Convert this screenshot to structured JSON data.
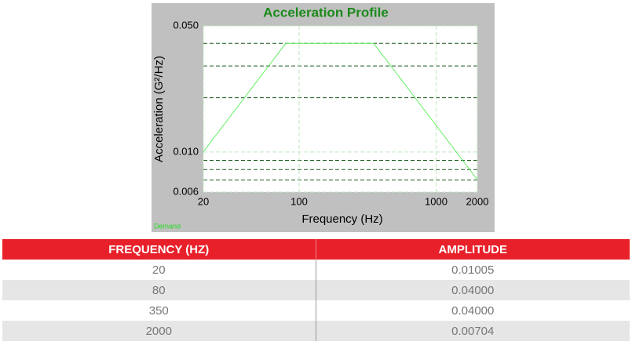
{
  "chart_data": {
    "type": "line",
    "title": "Acceleration Profile",
    "xlabel": "Frequency (Hz)",
    "ylabel": "Acceleration (G²/Hz)",
    "legend_text": "Demand",
    "xscale": "log",
    "yscale": "log",
    "x": [
      20,
      80,
      350,
      2000
    ],
    "series": [
      {
        "name": "Demand",
        "color": "#66ee66",
        "values": [
          0.01005,
          0.04,
          0.04,
          0.00704
        ]
      }
    ],
    "xlim": [
      20,
      2000
    ],
    "xticks": [
      20,
      100,
      1000,
      2000
    ],
    "ylim": [
      0.006,
      0.05
    ],
    "yticks": [
      {
        "value": 0.05,
        "label": "0.050"
      },
      {
        "value": 0.01,
        "label": "0.010"
      },
      {
        "value": 0.006,
        "label": "0.006"
      }
    ],
    "ygrid": [
      0.04,
      0.03,
      0.02,
      0.009,
      0.008,
      0.007
    ],
    "grid": true
  },
  "table": {
    "headers": [
      "FREQUENCY (HZ)",
      "AMPLITUDE"
    ],
    "rows": [
      [
        "20",
        "0.01005"
      ],
      [
        "80",
        "0.04000"
      ],
      [
        "350",
        "0.04000"
      ],
      [
        "2000",
        "0.00704"
      ]
    ]
  }
}
